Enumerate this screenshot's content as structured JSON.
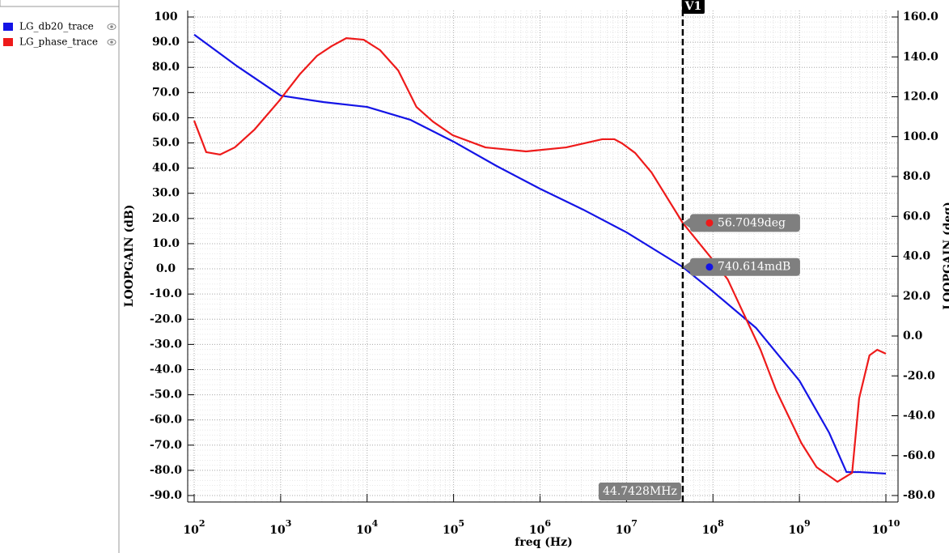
{
  "chart_data": {
    "type": "line",
    "x_scale": "log",
    "xlabel": "freq (Hz)",
    "ylabel": "LOOPGAIN (dB)",
    "y2label": "LOOPGAIN (deg)",
    "grid": true,
    "legend": "top-left",
    "xlim": [
      100,
      10000000000
    ],
    "xticks": [
      {
        "value": 100,
        "label": "10",
        "sup": "2"
      },
      {
        "value": 1000,
        "label": "10",
        "sup": "3"
      },
      {
        "value": 10000,
        "label": "10",
        "sup": "4"
      },
      {
        "value": 100000,
        "label": "10",
        "sup": "5"
      },
      {
        "value": 1000000,
        "label": "10",
        "sup": "6"
      },
      {
        "value": 10000000,
        "label": "10",
        "sup": "7"
      },
      {
        "value": 100000000,
        "label": "10",
        "sup": "8"
      },
      {
        "value": 1000000000,
        "label": "10",
        "sup": "9"
      },
      {
        "value": 10000000000,
        "label": "10",
        "sup": "10"
      }
    ],
    "ylim": [
      -90,
      100
    ],
    "yticks": [
      100,
      {
        "value": 90,
        "label": "90.0"
      },
      {
        "value": 80,
        "label": "80.0"
      },
      {
        "value": 70,
        "label": "70.0"
      },
      {
        "value": 60,
        "label": "60.0"
      },
      {
        "value": 50,
        "label": "50.0"
      },
      {
        "value": 40,
        "label": "40.0"
      },
      {
        "value": 30,
        "label": "30.0"
      },
      {
        "value": 20,
        "label": "20.0"
      },
      {
        "value": 10,
        "label": "10.0"
      },
      {
        "value": 0,
        "label": "0.0"
      },
      {
        "value": -10,
        "label": "-10.0"
      },
      {
        "value": -20,
        "label": "-20.0"
      },
      {
        "value": -30,
        "label": "-30.0"
      },
      {
        "value": -40,
        "label": "-40.0"
      },
      {
        "value": -50,
        "label": "-50.0"
      },
      {
        "value": -60,
        "label": "-60.0"
      },
      {
        "value": -70,
        "label": "-70.0"
      },
      {
        "value": -80,
        "label": "-80.0"
      },
      {
        "value": -90,
        "label": "-90.0"
      }
    ],
    "y2lim": [
      -80,
      160
    ],
    "y2ticks": [
      {
        "value": 160,
        "label": "160.0"
      },
      {
        "value": 140,
        "label": "140.0"
      },
      {
        "value": 120,
        "label": "120.0"
      },
      {
        "value": 100,
        "label": "100.0"
      },
      {
        "value": 80,
        "label": "80.0"
      },
      {
        "value": 60,
        "label": "60.0"
      },
      {
        "value": 40,
        "label": "40.0"
      },
      {
        "value": 20,
        "label": "20.0"
      },
      {
        "value": 0,
        "label": "0.0"
      },
      {
        "value": -20,
        "label": "-20.0"
      },
      {
        "value": -40,
        "label": "-40.0"
      },
      {
        "value": -60,
        "label": "-60.0"
      },
      {
        "value": -80,
        "label": "-80.0"
      }
    ],
    "series": [
      {
        "name": "LG_db20_trace",
        "color": "#1414e6",
        "axis": "y",
        "x": [
          100,
          316,
          1000,
          3160,
          10000,
          31600,
          100000,
          316000,
          1000000,
          3160000,
          10000000,
          44742800,
          100000000,
          316000000,
          1000000000,
          2200000000,
          3500000000,
          5000000000,
          10000000000
        ],
        "values": [
          93.0,
          80.4,
          68.8,
          66.2,
          64.3,
          59.2,
          50.5,
          40.8,
          31.8,
          23.5,
          14.5,
          0.740614,
          -9.0,
          -23.5,
          -44.4,
          -65.0,
          -80.7,
          -80.7,
          -81.3
        ]
      },
      {
        "name": "LG_phase_trace",
        "color": "#ee1a1a",
        "axis": "y2",
        "x": [
          100,
          138,
          200,
          295,
          500,
          955,
          1660,
          2630,
          3890,
          5750,
          9120,
          14100,
          22900,
          37200,
          57500,
          97700,
          234000,
          692000,
          2000000,
          5250000,
          7240000,
          8910000,
          12600000,
          19500000,
          44742800,
          97700000,
          148000000,
          204000000,
          355000000,
          537000000,
          1050000000,
          1580000000,
          2750000000,
          4070000000,
          4900000000,
          6460000000,
          7940000000,
          10000000000
        ],
        "values": [
          108.0,
          92.2,
          91.0,
          94.6,
          103.6,
          117.8,
          131.2,
          140.5,
          145.4,
          149.4,
          148.6,
          143.4,
          133.2,
          114.9,
          107.6,
          100.7,
          94.6,
          92.6,
          94.6,
          98.7,
          98.7,
          96.6,
          91.8,
          82.0,
          56.7049,
          38.6,
          28.4,
          15.4,
          -6.9,
          -27.2,
          -53.6,
          -65.8,
          -73.1,
          -68.6,
          -31.3,
          -9.7,
          -6.9,
          -8.9
        ]
      }
    ],
    "cursor": {
      "name": "V1",
      "x": 44742800,
      "x_label": "44.7428MHz",
      "points": [
        {
          "value": 56.7049,
          "label": "56.7049deg",
          "axis": "y2",
          "color": "#ee1a1a"
        },
        {
          "value": 0.740614,
          "label": "740.614mdB",
          "axis": "y",
          "color": "#1414e6"
        }
      ]
    }
  }
}
